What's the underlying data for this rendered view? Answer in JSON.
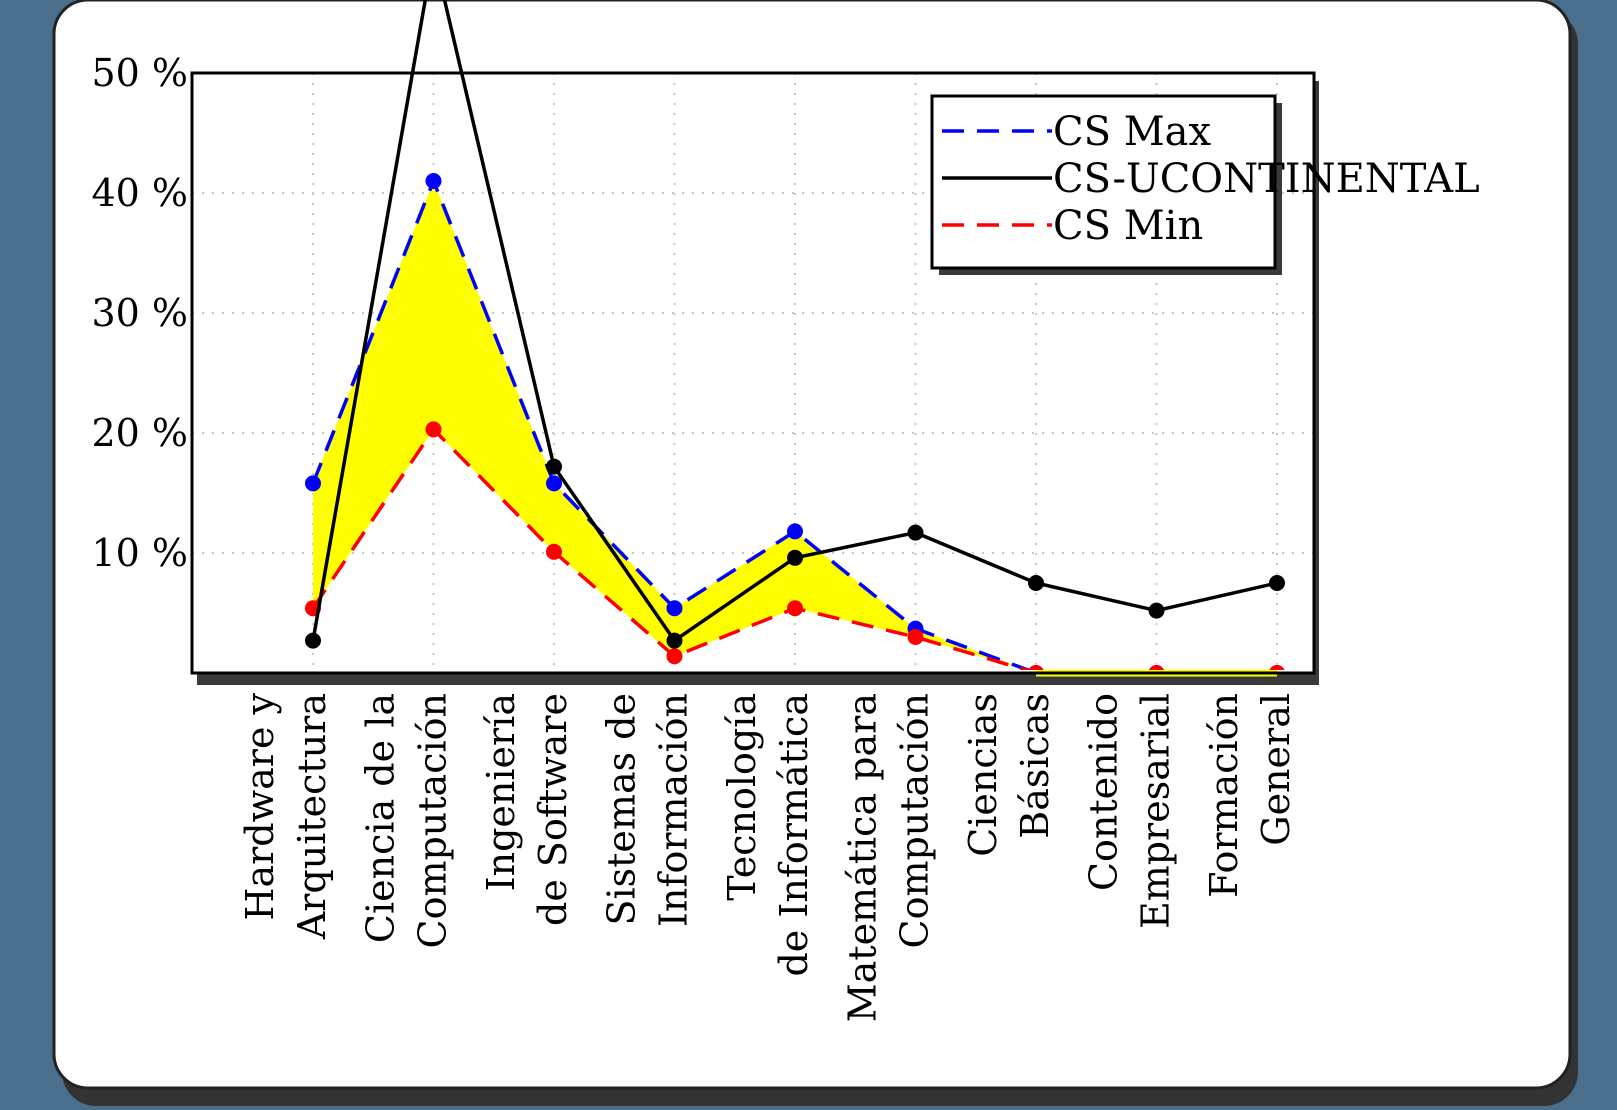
{
  "chart_data": {
    "type": "line",
    "categories": [
      [
        "Hardware y",
        "Arquitectura"
      ],
      [
        "Ciencia de la",
        "Computación"
      ],
      [
        "Ingeniería",
        "de Software"
      ],
      [
        "Sistemas de",
        "Información"
      ],
      [
        "Tecnología",
        "de Informática"
      ],
      [
        "Matemática para",
        "Computación"
      ],
      [
        "Ciencias",
        "Básicas"
      ],
      [
        "Contenido",
        "Empresarial"
      ],
      [
        "Formación",
        "General"
      ]
    ],
    "series": [
      {
        "name": "CS Max",
        "color": "#0000ff",
        "dash": "dashed",
        "values": [
          15.8,
          41.0,
          15.8,
          5.4,
          11.8,
          3.7,
          0,
          0,
          0
        ]
      },
      {
        "name": "CS-UCONTINENTAL",
        "color": "#000000",
        "dash": "solid",
        "values": [
          2.7,
          60.0,
          17.2,
          2.7,
          9.6,
          11.7,
          7.5,
          5.2,
          7.5
        ]
      },
      {
        "name": "CS Min",
        "color": "#ff0000",
        "dash": "dashed",
        "values": [
          5.4,
          20.3,
          10.1,
          1.4,
          5.4,
          3.0,
          0,
          0,
          0
        ]
      }
    ],
    "band": {
      "upper": "CS Max",
      "lower": "CS Min",
      "color": "#ffff00"
    },
    "ylim": [
      0,
      50
    ],
    "yticks": [
      "10 %",
      "20 %",
      "30 %",
      "40 %",
      "50 %"
    ],
    "ytick_values": [
      10,
      20,
      30,
      40,
      50
    ],
    "grid": true,
    "legend_position": "top-right"
  }
}
